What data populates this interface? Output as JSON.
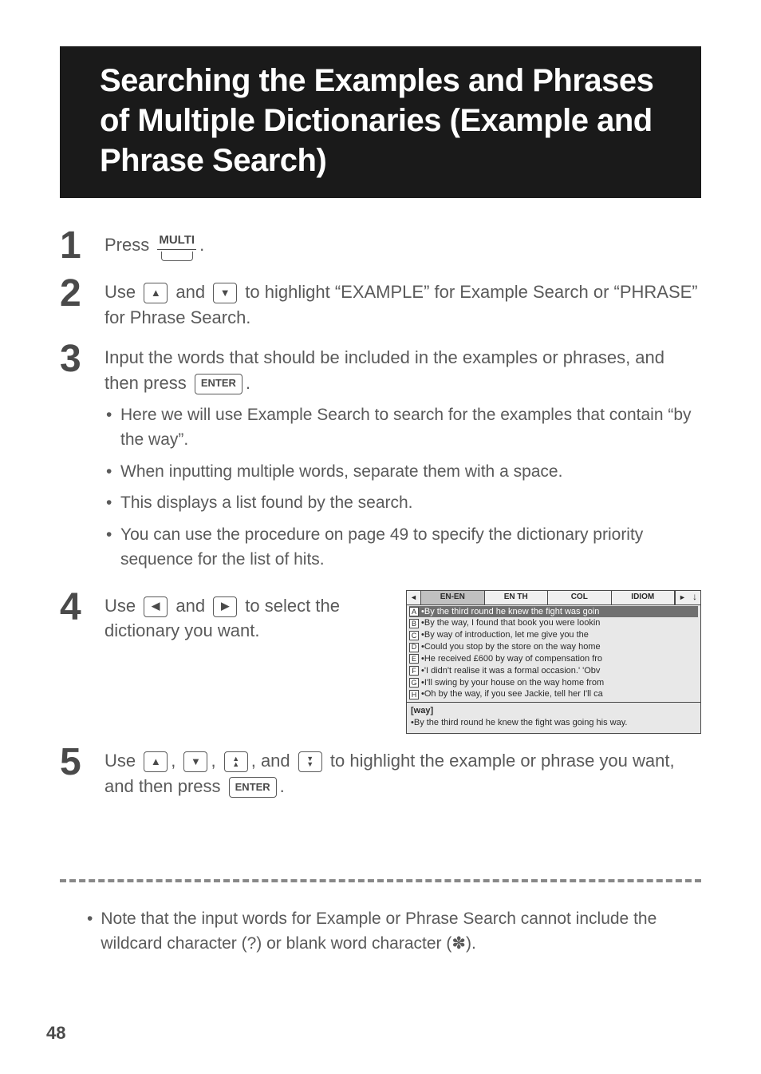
{
  "title": "Searching the Examples and Phrases of Multiple Dictionaries (Example and Phrase Search)",
  "steps": {
    "s1": {
      "num": "1",
      "pre": "Press ",
      "key_label": "MULTI",
      "post": "."
    },
    "s2": {
      "num": "2",
      "pre": "Use ",
      "mid": " and ",
      "post": " to highlight “EXAMPLE” for Example Search or “PHRASE” for Phrase Search."
    },
    "s3": {
      "num": "3",
      "pre": "Input the words that should be included in the examples or phrases, and then press ",
      "key": "ENTER",
      "post": ".",
      "bullets": [
        "Here we will use Example Search to search for the examples that contain “by the way”.",
        "When inputting multiple words, separate them with a space.",
        "This displays a list found by the search.",
        "You can use the procedure on page 49 to specify the dictionary priority sequence for the list of hits."
      ]
    },
    "s4": {
      "num": "4",
      "pre": "Use ",
      "mid": " and ",
      "post": " to select the dictionary you want."
    },
    "s5": {
      "num": "5",
      "pre": "Use ",
      "c1": ", ",
      "c2": ", ",
      "c3": ", and ",
      "post": " to highlight the example or phrase you want, and then press ",
      "key": "ENTER",
      "end": "."
    }
  },
  "screenshot": {
    "tabs": [
      "EN-EN",
      "EN TH",
      "COL",
      "IDIOM"
    ],
    "rows": [
      {
        "l": "A",
        "t": "•By the third round he knew the fight was goin",
        "hilite": true
      },
      {
        "l": "B",
        "t": "•By the way, I found that book you were lookin"
      },
      {
        "l": "C",
        "t": "•By way of introduction, let me give you the"
      },
      {
        "l": "D",
        "t": "•Could you stop by the store on the way home"
      },
      {
        "l": "E",
        "t": "•He received £600 by way of compensation fro"
      },
      {
        "l": "F",
        "t": "•'I didn't realise it was a formal occasion.'  'Obv"
      },
      {
        "l": "G",
        "t": "•I'll swing by your house on the way home from"
      },
      {
        "l": "H",
        "t": "•Oh by the way, if you see Jackie, tell her I'll ca"
      }
    ],
    "preview_kw": "[way]",
    "preview_text": "•By the third round he knew the fight was going his way."
  },
  "footnote": "Note that the input words for Example or Phrase Search cannot include the wildcard character (?) or blank word character (✽).",
  "page_number": "48",
  "glyphs": {
    "up": "▲",
    "down": "▼",
    "left": "◀",
    "right": "▶",
    "pageup": "▲",
    "pagedown": "▼"
  }
}
